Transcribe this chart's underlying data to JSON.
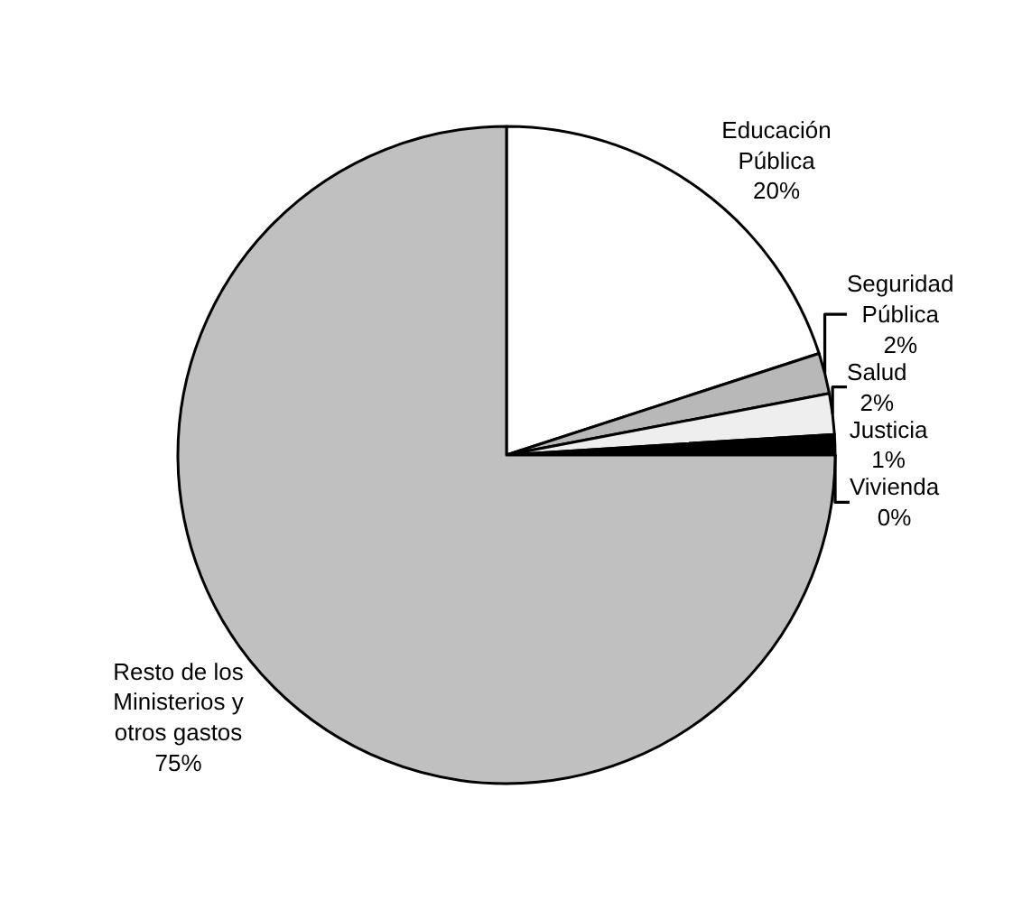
{
  "chart_data": {
    "type": "pie",
    "categories": [
      "Educación Pública",
      "Seguridad Pública",
      "Salud",
      "Justicia",
      "Vivienda",
      "Resto de los Ministerios y otros gastos"
    ],
    "values": [
      20,
      2,
      2,
      1,
      0,
      75
    ],
    "value_labels": [
      "20%",
      "2%",
      "2%",
      "1%",
      "0%",
      "75%"
    ],
    "colors": [
      "#ffffff",
      "#b8b8b8",
      "#eeeeee",
      "#000000",
      "#000000",
      "#c0c0c0"
    ]
  }
}
